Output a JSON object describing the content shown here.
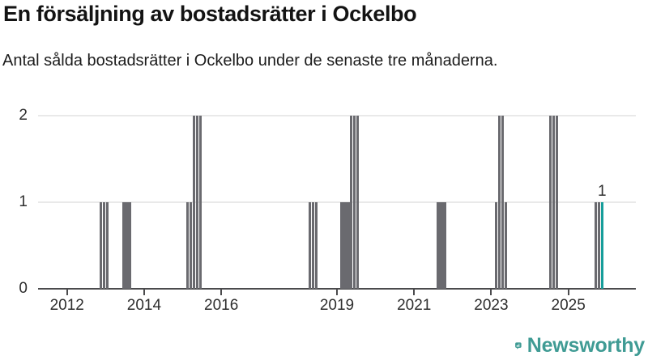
{
  "chart_data": {
    "type": "bar",
    "title": "En försäljning av bostadsrätter i Ockelbo",
    "subtitle": "Antal sålda bostadsrätter i Ockelbo under de senaste tre månaderna.",
    "ylim": [
      0,
      2
    ],
    "yticks": [
      0,
      1,
      2
    ],
    "xtick_years": [
      2012,
      2014,
      2016,
      2019,
      2021,
      2023,
      2025
    ],
    "x_domain": [
      2011.25,
      2026.75
    ],
    "grid": true,
    "legend": "none",
    "colors": {
      "bar": "#6a6a6f",
      "highlight": "#169d9a"
    },
    "annotation": {
      "label": "1"
    },
    "bars": [
      {
        "year": 2012,
        "month": 11,
        "value": 1
      },
      {
        "year": 2012,
        "month": 12,
        "value": 1
      },
      {
        "year": 2013,
        "month": 1,
        "value": 1
      },
      {
        "year": 2013,
        "month": 6,
        "value": 1
      },
      {
        "year": 2013,
        "month": 7,
        "value": 1
      },
      {
        "year": 2013,
        "month": 8,
        "value": 1
      },
      {
        "year": 2015,
        "month": 2,
        "value": 1
      },
      {
        "year": 2015,
        "month": 3,
        "value": 1
      },
      {
        "year": 2015,
        "month": 4,
        "value": 2
      },
      {
        "year": 2015,
        "month": 5,
        "value": 2
      },
      {
        "year": 2015,
        "month": 6,
        "value": 2
      },
      {
        "year": 2018,
        "month": 4,
        "value": 1
      },
      {
        "year": 2018,
        "month": 5,
        "value": 1
      },
      {
        "year": 2018,
        "month": 6,
        "value": 1
      },
      {
        "year": 2019,
        "month": 2,
        "value": 1
      },
      {
        "year": 2019,
        "month": 3,
        "value": 1
      },
      {
        "year": 2019,
        "month": 4,
        "value": 1
      },
      {
        "year": 2019,
        "month": 5,
        "value": 2
      },
      {
        "year": 2019,
        "month": 6,
        "value": 2
      },
      {
        "year": 2019,
        "month": 7,
        "value": 2
      },
      {
        "year": 2021,
        "month": 8,
        "value": 1
      },
      {
        "year": 2021,
        "month": 9,
        "value": 1
      },
      {
        "year": 2021,
        "month": 10,
        "value": 1
      },
      {
        "year": 2023,
        "month": 2,
        "value": 1
      },
      {
        "year": 2023,
        "month": 3,
        "value": 2
      },
      {
        "year": 2023,
        "month": 4,
        "value": 2
      },
      {
        "year": 2023,
        "month": 5,
        "value": 1
      },
      {
        "year": 2024,
        "month": 7,
        "value": 2
      },
      {
        "year": 2024,
        "month": 8,
        "value": 2
      },
      {
        "year": 2024,
        "month": 9,
        "value": 2
      },
      {
        "year": 2025,
        "month": 9,
        "value": 1
      },
      {
        "year": 2025,
        "month": 10,
        "value": 1
      },
      {
        "year": 2025,
        "month": 11,
        "value": 1,
        "highlight": true
      }
    ]
  },
  "branding": {
    "logo_text": "Newsworthy",
    "logo_color": "#3f9b94"
  }
}
